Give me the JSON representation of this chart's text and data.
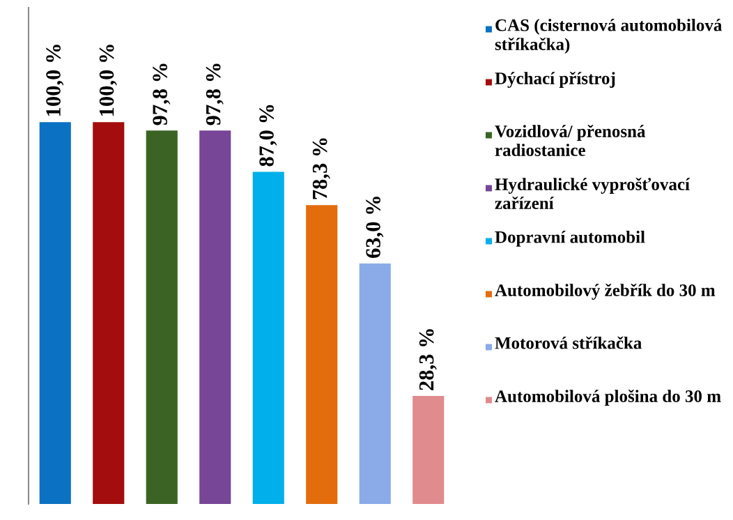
{
  "chart_data": {
    "type": "bar",
    "stacked": true,
    "categories": [
      null,
      null,
      null,
      null,
      null,
      null,
      null,
      null
    ],
    "series": [
      {
        "name": "CAS (cisternová automobilová stříkačka)",
        "color": "#0b71c2",
        "values": [
          100.0,
          null,
          null,
          null,
          null,
          null,
          null,
          null
        ],
        "value_labels": [
          "100,0 %",
          null,
          null,
          null,
          null,
          null,
          null,
          null
        ]
      },
      {
        "name": "Dýchací přístroj",
        "color": "#a30d0d",
        "values": [
          null,
          100.0,
          null,
          null,
          null,
          null,
          null,
          null
        ],
        "value_labels": [
          null,
          "100,0 %",
          null,
          null,
          null,
          null,
          null,
          null
        ]
      },
      {
        "name": "Vozidlová/ přenosná radiostanice",
        "color": "#3b6424",
        "values": [
          null,
          null,
          97.8,
          null,
          null,
          null,
          null,
          null
        ],
        "value_labels": [
          null,
          null,
          "97,8 %",
          null,
          null,
          null,
          null,
          null
        ]
      },
      {
        "name": "Hydraulické vyprošťovací zařízení",
        "color": "#774697",
        "values": [
          null,
          null,
          null,
          97.8,
          null,
          null,
          null,
          null
        ],
        "value_labels": [
          null,
          null,
          null,
          "97,8 %",
          null,
          null,
          null,
          null
        ]
      },
      {
        "name": "Dopravní automobil",
        "color": "#01b0ea",
        "values": [
          null,
          null,
          null,
          null,
          87.0,
          null,
          null,
          null
        ],
        "value_labels": [
          null,
          null,
          null,
          null,
          "87,0 %",
          null,
          null,
          null
        ]
      },
      {
        "name": "Automobilový žebřík do 30 m",
        "color": "#e36c0c",
        "values": [
          null,
          null,
          null,
          null,
          null,
          78.3,
          null,
          null
        ],
        "value_labels": [
          null,
          null,
          null,
          null,
          null,
          "78,3 %",
          null,
          null
        ]
      },
      {
        "name": "Motorová stříkačka",
        "color": "#8aabe8",
        "values": [
          null,
          null,
          null,
          null,
          null,
          null,
          63.0,
          null
        ],
        "value_labels": [
          null,
          null,
          null,
          null,
          null,
          null,
          "63,0 %",
          null
        ]
      },
      {
        "name": "Automobilová plošina do 30 m",
        "color": "#e08b8e",
        "values": [
          null,
          null,
          null,
          null,
          null,
          null,
          null,
          28.3
        ],
        "value_labels": [
          null,
          null,
          null,
          null,
          null,
          null,
          null,
          "28,3 %"
        ]
      }
    ],
    "ylim": [
      0,
      130
    ],
    "tick_labels": false,
    "legend": "right"
  }
}
